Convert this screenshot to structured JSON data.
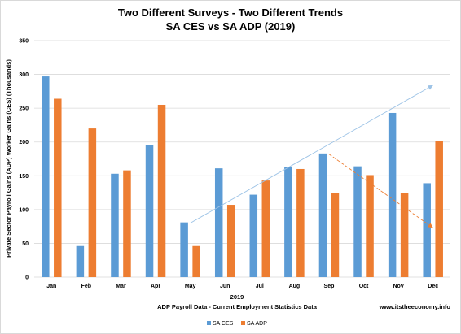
{
  "chart_data": {
    "type": "bar",
    "title": "Two Different Surveys - Two Different Trends",
    "subtitle": "SA CES vs SA ADP (2019)",
    "ylabel": "Private Sector Payroll Gains (ADP) Worker Gains (CES) (Thousands)",
    "xlabel": "2019",
    "xlabel2": "ADP Payroll Data - Current Employment Statistics Data",
    "watermark": "www.itstheeconomy.info",
    "ylim": [
      0,
      350
    ],
    "yticks": [
      "0",
      "50",
      "100",
      "150",
      "200",
      "250",
      "300",
      "350"
    ],
    "grid": true,
    "legend_position": "bottom",
    "categories": [
      "Jan",
      "Feb",
      "Mar",
      "Apr",
      "May",
      "Jun",
      "Jul",
      "Aug",
      "Sep",
      "Oct",
      "Nov",
      "Dec"
    ],
    "series": [
      {
        "name": "SA CES",
        "color": "#5b9bd5",
        "values": [
          297,
          46,
          153,
          195,
          81,
          161,
          122,
          163,
          183,
          164,
          243,
          139
        ]
      },
      {
        "name": "SA ADP",
        "color": "#ed7d31",
        "values": [
          264,
          220,
          158,
          255,
          46,
          107,
          143,
          160,
          124,
          151,
          124,
          202
        ]
      }
    ],
    "trendlines": [
      {
        "series": "SA CES",
        "color": "#9dc3e6",
        "start": {
          "x": "May",
          "y": 80
        },
        "end": {
          "x": "Dec",
          "y": 284
        }
      },
      {
        "series": "SA ADP",
        "color": "#ed7d31",
        "start": {
          "x": "Sep",
          "y": 182
        },
        "end": {
          "x": "Dec",
          "y": 73
        }
      }
    ]
  }
}
